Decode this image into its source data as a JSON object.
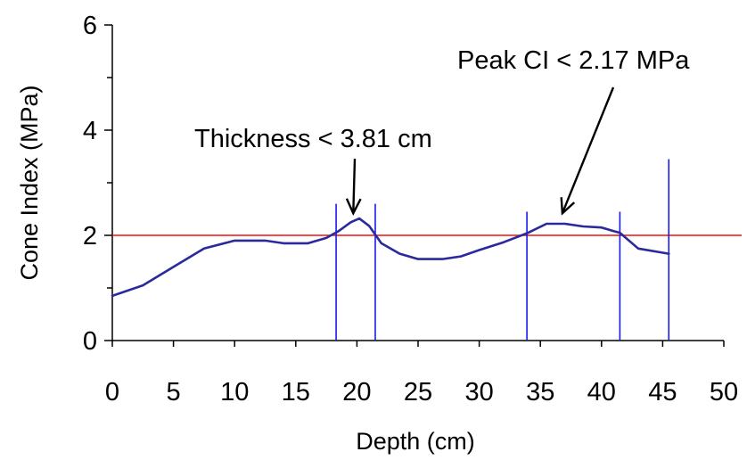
{
  "chart_data": {
    "type": "line",
    "title": "",
    "xlabel": "Depth (cm)",
    "ylabel": "Cone Index (MPa)",
    "xlim": [
      0,
      50
    ],
    "ylim": [
      0,
      6
    ],
    "x_ticks": [
      "0",
      "5",
      "10",
      "15",
      "20",
      "25",
      "30",
      "35",
      "40",
      "45",
      "50"
    ],
    "y_ticks": [
      "0",
      "2",
      "4",
      "6"
    ],
    "grid": false,
    "legend": "none",
    "series": [
      {
        "color": "#2a2a9c",
        "x": [
          0,
          2.5,
          5,
          7.5,
          10,
          12.5,
          14,
          16,
          17.5,
          18.5,
          19.5,
          20.2,
          21,
          22,
          23.5,
          25,
          27,
          28.5,
          30,
          32,
          34,
          35.5,
          37,
          38.5,
          40,
          41,
          41.5,
          43,
          45.5
        ],
        "y": [
          0.85,
          1.05,
          1.4,
          1.75,
          1.9,
          1.9,
          1.85,
          1.85,
          1.95,
          2.08,
          2.25,
          2.32,
          2.18,
          1.85,
          1.65,
          1.55,
          1.55,
          1.6,
          1.72,
          1.87,
          2.05,
          2.22,
          2.22,
          2.17,
          2.15,
          2.08,
          2.05,
          1.75,
          1.65
        ]
      }
    ],
    "reference_line": {
      "y": 2.0,
      "color": "#ee1111"
    },
    "vertical_markers": {
      "color": "#1a1aee",
      "lines": [
        {
          "x": 18.3,
          "y_top": 2.6
        },
        {
          "x": 21.5,
          "y_top": 2.6
        },
        {
          "x": 33.9,
          "y_top": 2.45
        },
        {
          "x": 41.5,
          "y_top": 2.45
        },
        {
          "x": 45.5,
          "y_top": 3.45
        }
      ]
    },
    "annotations": [
      {
        "text": "Thickness < 3.81 cm",
        "arrow_to": [
          19.7,
          2.42
        ]
      },
      {
        "text": "Peak CI < 2.17 MPa",
        "arrow_to": [
          36.8,
          2.42
        ]
      }
    ]
  }
}
